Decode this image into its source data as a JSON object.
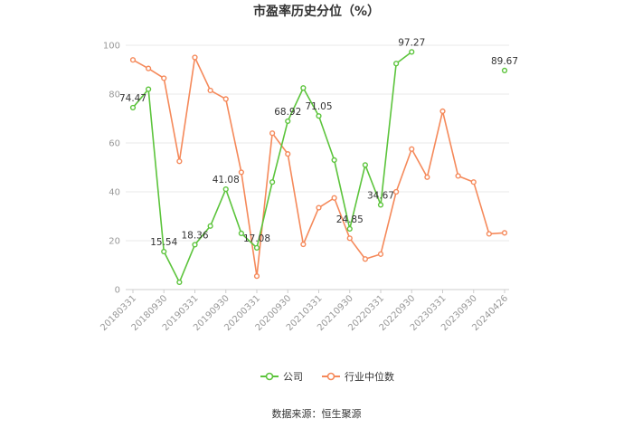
{
  "chart_data": {
    "type": "line",
    "title": "市盈率历史分位（%）",
    "source": "数据来源：恒生聚源",
    "ylim": [
      0,
      100
    ],
    "yticks": [
      0,
      20,
      40,
      60,
      80,
      100
    ],
    "grid": true,
    "legend_position": "bottom",
    "x": [
      "20180331",
      "20180630",
      "20180930",
      "20181231",
      "20190331",
      "20190630",
      "20190930",
      "20191231",
      "20200331",
      "20200630",
      "20200930",
      "20201231",
      "20210331",
      "20210630",
      "20210930",
      "20211231",
      "20220331",
      "20220630",
      "20220930",
      "20221231",
      "20230331",
      "20230630",
      "20230930",
      "20231231",
      "20240426"
    ],
    "x_tick_labels": [
      "20180331",
      "20180930",
      "20190331",
      "20190930",
      "20200331",
      "20200930",
      "20210331",
      "20210930",
      "20220331",
      "20220930",
      "20230331",
      "20230930",
      "20240426"
    ],
    "series": [
      {
        "name": "公司",
        "color": "#5cc43c",
        "values": [
          74.47,
          82,
          15.54,
          3,
          18.36,
          26,
          41.08,
          23,
          17.08,
          44,
          68.92,
          82.5,
          71.05,
          53,
          24.85,
          51,
          34.67,
          92.5,
          97.27,
          null,
          null,
          null,
          null,
          null,
          89.67
        ],
        "labels": {
          "0": "74.47",
          "2": "15.54",
          "4": "18.36",
          "6": "41.08",
          "8": "17.08",
          "10": "68.92",
          "12": "71.05",
          "14": "24.85",
          "16": "34.67",
          "18": "97.27",
          "24": "89.67"
        }
      },
      {
        "name": "行业中位数",
        "color": "#f5895a",
        "values": [
          94,
          90.5,
          86.5,
          52.5,
          95,
          81.5,
          78,
          48,
          5.5,
          64,
          55.5,
          18.5,
          33.5,
          37.5,
          21,
          12.5,
          14.5,
          40,
          57.5,
          46,
          73,
          46.5,
          44,
          22.8,
          23.2
        ]
      }
    ]
  }
}
